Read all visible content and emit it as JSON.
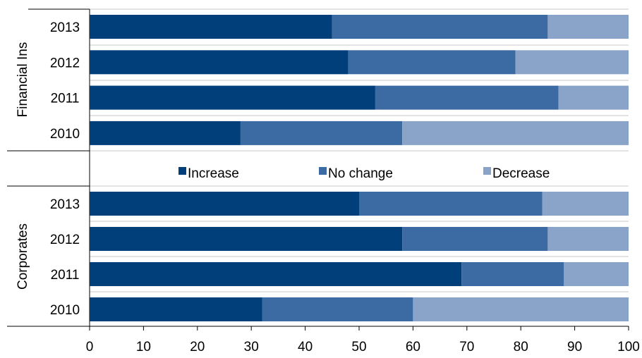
{
  "chart_data": {
    "type": "bar",
    "orientation": "horizontal",
    "stacked": true,
    "xlim": [
      0,
      100
    ],
    "xticks": [
      "0",
      "10",
      "20",
      "30",
      "40",
      "50",
      "60",
      "70",
      "80",
      "90",
      "100"
    ],
    "groups": [
      {
        "name": "Financial Ins",
        "categories": [
          "2013",
          "2012",
          "2011",
          "2010"
        ],
        "series": [
          {
            "name": "Increase",
            "values": [
              45,
              48,
              53,
              28
            ]
          },
          {
            "name": "No change",
            "values": [
              40,
              31,
              34,
              30
            ]
          },
          {
            "name": "Decrease",
            "values": [
              15,
              21,
              13,
              42
            ]
          }
        ]
      },
      {
        "name": "Corporates",
        "categories": [
          "2013",
          "2012",
          "2011",
          "2010"
        ],
        "series": [
          {
            "name": "Increase",
            "values": [
              50,
              58,
              69,
              32
            ]
          },
          {
            "name": "No change",
            "values": [
              34,
              27,
              19,
              28
            ]
          },
          {
            "name": "Decrease",
            "values": [
              16,
              15,
              12,
              40
            ]
          }
        ]
      }
    ],
    "legend": {
      "placement": "middle",
      "entries": [
        "Increase",
        "No change",
        "Decrease"
      ]
    },
    "colors": {
      "Increase": "#003f7a",
      "No change": "#3c6aa3",
      "Decrease": "#8aa3c8",
      "grid": "#c8c8c8"
    },
    "grid": true
  }
}
